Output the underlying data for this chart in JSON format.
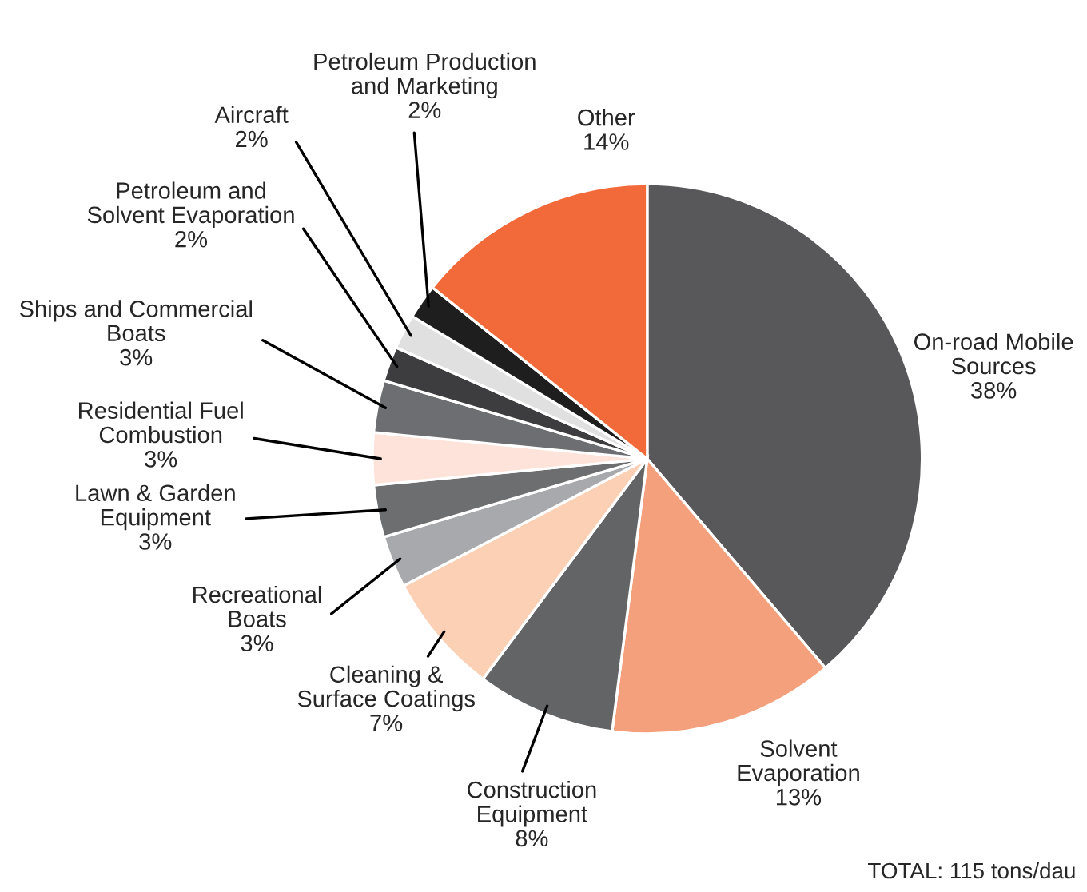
{
  "chart_data": {
    "type": "pie",
    "categories": [
      "On-road Mobile\nSources",
      "Solvent\nEvaporation",
      "Construction\nEquipment",
      "Cleaning &\nSurface Coatings",
      "Recreational\nBoats",
      "Lawn & Garden\nEquipment",
      "Residential Fuel\nCombustion",
      "Ships and Commercial\nBoats",
      "Petroleum and\nSolvent Evaporation",
      "Aircraft",
      "Petroleum Production\nand Marketing",
      "Other"
    ],
    "values": [
      38,
      13,
      8,
      7,
      3,
      3,
      3,
      3,
      2,
      2,
      2,
      14
    ],
    "value_labels": [
      "38%",
      "13%",
      "8%",
      "7%",
      "3%",
      "3%",
      "3%",
      "3%",
      "2%",
      "2%",
      "2%",
      "14%"
    ],
    "colors": [
      "#58585a",
      "#f4a07c",
      "#636466",
      "#fbd0b5",
      "#a7a9ac",
      "#6d6e70",
      "#fde3d9",
      "#6d6e71",
      "#3d3d3f",
      "#e0e0e0",
      "#1e1e1e",
      "#f26a3a"
    ],
    "annotations": [
      "TOTAL: 115 tons/dau"
    ]
  }
}
